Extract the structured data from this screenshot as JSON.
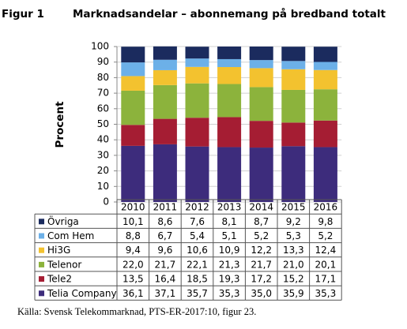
{
  "chart_data": {
    "type": "stacked_bar",
    "figure_label": "Figur 1",
    "title": "Marknadsandelar – abonnemang på bredband totalt",
    "y_label": "Procent",
    "categories": [
      "2010",
      "2011",
      "2012",
      "2013",
      "2014",
      "2015",
      "2016"
    ],
    "series": [
      {
        "name": "Telia Company",
        "color": "#3d2c7c",
        "values": [
          36.1,
          37.1,
          35.7,
          35.3,
          35.0,
          35.9,
          35.3
        ],
        "value_labels": [
          "36,1",
          "37,1",
          "35,7",
          "35,3",
          "35,0",
          "35,9",
          "35,3"
        ]
      },
      {
        "name": "Tele2",
        "color": "#a51d33",
        "values": [
          13.5,
          16.4,
          18.5,
          19.3,
          17.2,
          15.2,
          17.1
        ],
        "value_labels": [
          "13,5",
          "16,4",
          "18,5",
          "19,3",
          "17,2",
          "15,2",
          "17,1"
        ]
      },
      {
        "name": "Telenor",
        "color": "#8cb33c",
        "values": [
          22.0,
          21.7,
          22.1,
          21.3,
          21.7,
          21.0,
          20.1
        ],
        "value_labels": [
          "22,0",
          "21,7",
          "22,1",
          "21,3",
          "21,7",
          "21,0",
          "20,1"
        ]
      },
      {
        "name": "Hi3G",
        "color": "#f3c22f",
        "values": [
          9.4,
          9.6,
          10.6,
          10.9,
          12.2,
          13.3,
          12.4
        ],
        "value_labels": [
          "9,4",
          "9,6",
          "10,6",
          "10,9",
          "12,2",
          "13,3",
          "12,4"
        ]
      },
      {
        "name": "Com Hem",
        "color": "#6cb0e8",
        "values": [
          8.8,
          6.7,
          5.4,
          5.1,
          5.2,
          5.3,
          5.2
        ],
        "value_labels": [
          "8,8",
          "6,7",
          "5,4",
          "5,1",
          "5,2",
          "5,3",
          "5,2"
        ]
      },
      {
        "name": "Övriga",
        "color": "#1b2b5e",
        "values": [
          10.1,
          8.6,
          7.6,
          8.1,
          8.7,
          9.2,
          9.8
        ],
        "value_labels": [
          "10,1",
          "8,6",
          "7,6",
          "8,1",
          "8,7",
          "9,2",
          "9,8"
        ]
      }
    ],
    "ylim": [
      0,
      100
    ],
    "yticks": [
      0,
      10,
      20,
      30,
      40,
      50,
      60,
      70,
      80,
      90,
      100
    ],
    "grid": true,
    "source": "Källa: Svensk Telekommarknad, PTS-ER-2017:10, figur 23."
  }
}
